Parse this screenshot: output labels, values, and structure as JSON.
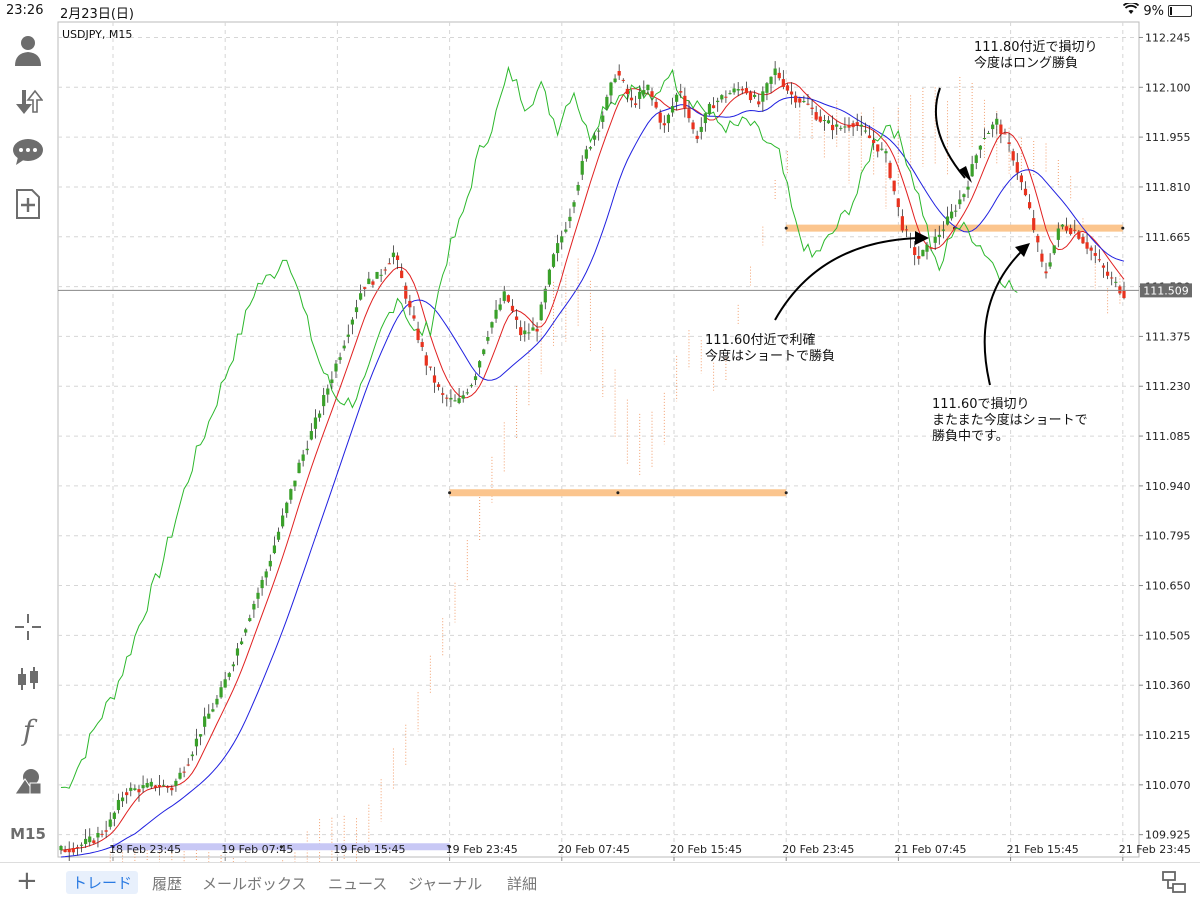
{
  "status": {
    "time": "23:26",
    "date": "2月23日(日)",
    "battery": "9%",
    "battery_level": 0.09
  },
  "sidebar": {
    "items": [
      {
        "name": "account-icon"
      },
      {
        "name": "trade-arrows-icon"
      },
      {
        "name": "chat-icon"
      },
      {
        "name": "new-document-icon"
      },
      {
        "name": "crosshair-icon"
      },
      {
        "name": "candles-icon"
      },
      {
        "name": "indicator-f-icon",
        "label": "f"
      },
      {
        "name": "objects-icon"
      },
      {
        "name": "timeframe",
        "label": "M15"
      }
    ]
  },
  "chart_data": {
    "type": "candlestick",
    "title": "USDJPY, M15",
    "current_price": "111.509",
    "y_ticks": [
      "112.245",
      "112.100",
      "111.955",
      "111.810",
      "111.665",
      "111.520",
      "111.375",
      "111.230",
      "111.085",
      "110.940",
      "110.795",
      "110.650",
      "110.505",
      "110.360",
      "110.215",
      "110.070",
      "109.925"
    ],
    "ylim": [
      109.86,
      112.29
    ],
    "x_ticks": [
      "18 Feb 23:45",
      "19 Feb 07:45",
      "19 Feb 15:45",
      "19 Feb 23:45",
      "20 Feb 07:45",
      "20 Feb 15:45",
      "20 Feb 23:45",
      "21 Feb 07:45",
      "21 Feb 15:45",
      "21 Feb 23:45"
    ],
    "close_path": [
      109.88,
      109.89,
      109.91,
      109.95,
      110.05,
      110.06,
      110.07,
      110.06,
      110.14,
      110.25,
      110.33,
      110.45,
      110.58,
      110.7,
      110.85,
      111.0,
      111.12,
      111.25,
      111.38,
      111.52,
      111.55,
      111.62,
      111.45,
      111.3,
      111.2,
      111.18,
      111.25,
      111.4,
      111.5,
      111.38,
      111.4,
      111.6,
      111.72,
      111.9,
      112.0,
      112.15,
      112.05,
      112.1,
      111.98,
      112.1,
      111.95,
      112.05,
      112.08,
      112.1,
      112.05,
      112.15,
      112.08,
      112.05,
      112.0,
      111.98,
      112.0,
      111.95,
      111.9,
      111.7,
      111.6,
      111.65,
      111.72,
      111.8,
      111.95,
      112.0,
      111.9,
      111.75,
      111.55,
      111.7,
      111.68,
      111.62,
      111.55,
      111.5
    ],
    "annotations": [
      {
        "text": [
          "111.80付近で損切り",
          "今度はロング勝負"
        ]
      },
      {
        "text": [
          "111.60付近で利確",
          "今度はショートで勝負"
        ]
      },
      {
        "text": [
          "111.60で損切り",
          "またまた今度はショートで",
          "勝負中です。"
        ]
      }
    ],
    "levels": [
      {
        "price": 110.92,
        "from_label": "19 Feb 23:45",
        "to_label": "20 Feb 23:45",
        "color": "#fbc58e"
      },
      {
        "price": 111.69,
        "from_label": "20 Feb 23:45",
        "to_label": "21 Feb 23:45",
        "color": "#fbc58e"
      },
      {
        "price": 109.89,
        "from_label": "18 Feb 23:45",
        "to_label": "19 Feb 23:45",
        "color": "#c8c8f5"
      }
    ],
    "colors": {
      "bull": "#3aa02a",
      "bear": "#e8321e",
      "tenkan": "#e02020",
      "kijun": "#2020e0",
      "chikou": "#2cb82c",
      "cloud": "#f2a070"
    }
  },
  "tabs": {
    "items": [
      "トレード",
      "履歴",
      "メールボックス",
      "ニュース",
      "ジャーナル",
      "詳細"
    ],
    "active": 0
  }
}
